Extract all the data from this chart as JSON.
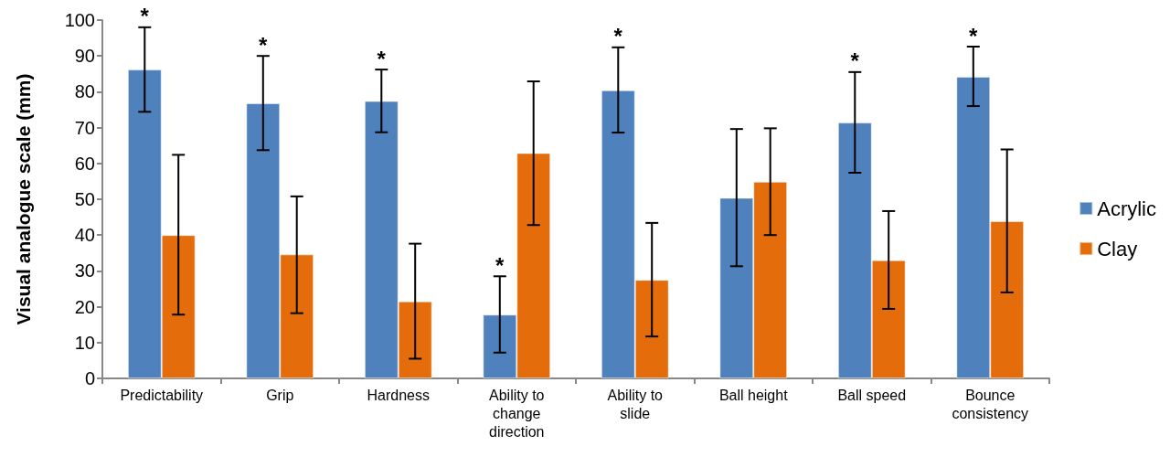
{
  "chart_data": {
    "type": "bar",
    "ylabel": "Visual analogue scale (mm)",
    "categories": [
      "Predictability",
      "Grip",
      "Hardness",
      "Ability to change direction",
      "Ability to slide",
      "Ball height",
      "Ball speed",
      "Bounce consistency"
    ],
    "series": [
      {
        "name": "Acrylic",
        "color": "#4f81bd",
        "values": [
          86.2,
          76.8,
          77.4,
          17.8,
          80.4,
          50.4,
          71.4,
          84.2
        ],
        "value_labels": [
          "*",
          "*",
          "*",
          "*",
          "*",
          null,
          "*",
          "*"
        ],
        "errors": [
          [
            74.4,
            98.0
          ],
          [
            63.7,
            90.0
          ],
          [
            68.7,
            86.2
          ],
          [
            7.2,
            28.5
          ],
          [
            68.6,
            92.4
          ],
          [
            31.3,
            69.6
          ],
          [
            57.4,
            85.5
          ],
          [
            76.0,
            92.6
          ]
        ]
      },
      {
        "name": "Clay",
        "color": "#e46c0a",
        "values": [
          40.0,
          34.6,
          21.5,
          62.9,
          27.5,
          54.9,
          33.0,
          43.9
        ],
        "errors": [
          [
            17.8,
            62.4
          ],
          [
            18.2,
            50.8
          ],
          [
            5.5,
            37.6
          ],
          [
            42.8,
            82.9
          ],
          [
            11.7,
            43.4
          ],
          [
            40.0,
            69.8
          ],
          [
            19.4,
            46.7
          ],
          [
            24.0,
            63.9
          ]
        ]
      }
    ],
    "ylim": [
      0,
      100
    ],
    "yticks": [
      0,
      10,
      20,
      30,
      40,
      50,
      60,
      70,
      80,
      90,
      100
    ],
    "grid": false,
    "legend": "right"
  }
}
